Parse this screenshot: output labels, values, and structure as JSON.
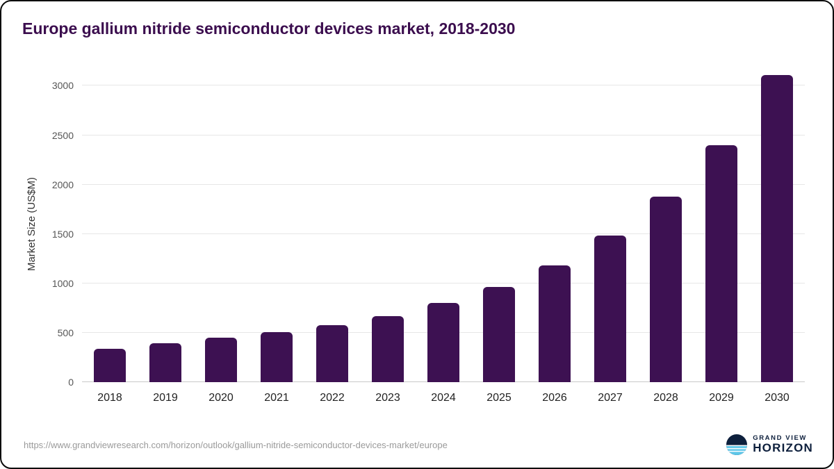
{
  "chart_data": {
    "type": "bar",
    "title": "Europe gallium nitride semiconductor devices market, 2018-2030",
    "xlabel": "",
    "ylabel": "Market Size (US$M)",
    "categories": [
      "2018",
      "2019",
      "2020",
      "2021",
      "2022",
      "2023",
      "2024",
      "2025",
      "2026",
      "2027",
      "2028",
      "2029",
      "2030"
    ],
    "values": [
      340,
      395,
      450,
      505,
      575,
      670,
      800,
      965,
      1185,
      1485,
      1875,
      2400,
      3110
    ],
    "yticks": [
      0,
      500,
      1000,
      1500,
      2000,
      2500,
      3000
    ],
    "ylim": [
      0,
      3200
    ],
    "grid": true,
    "legend": false,
    "bar_color": "#3d1152"
  },
  "footer": {
    "source_url": "https://www.grandviewresearch.com/horizon/outlook/gallium-nitride-semiconductor-devices-market/europe",
    "logo": {
      "line1": "GRAND VIEW",
      "line2": "HORIZON"
    }
  },
  "colors": {
    "title": "#3b0d4e",
    "bar": "#3d1152",
    "logo_navy": "#0d1f3c",
    "logo_light_blue": "#5ec6e8",
    "gridline": "#e6e6e6"
  }
}
